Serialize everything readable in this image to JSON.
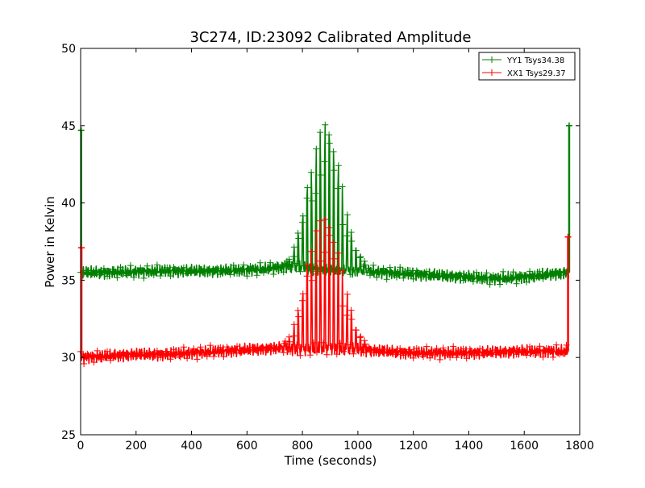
{
  "chart_data": {
    "type": "line",
    "title": "3C274, ID:23092 Calibrated Amplitude",
    "xlabel": "Time (seconds)",
    "ylabel": "Power in Kelvin",
    "xlim": [
      0,
      1800
    ],
    "ylim": [
      25,
      50
    ],
    "x_ticks": [
      0,
      200,
      400,
      600,
      800,
      1000,
      1200,
      1400,
      1600,
      1800
    ],
    "y_ticks": [
      25,
      30,
      35,
      40,
      45,
      50
    ],
    "x_tick_labels": [
      "0",
      "200",
      "400",
      "600",
      "800",
      "1000",
      "1200",
      "1400",
      "1600",
      "1800"
    ],
    "y_tick_labels": [
      "25",
      "30",
      "35",
      "40",
      "45",
      "50"
    ],
    "grid": false,
    "legend_position": "top-right",
    "marker": "+",
    "series": [
      {
        "name": "YY1 Tsys34.38",
        "color": "#008000",
        "baseline": [
          [
            0,
            35.5
          ],
          [
            100,
            35.5
          ],
          [
            300,
            35.6
          ],
          [
            500,
            35.6
          ],
          [
            650,
            35.7
          ],
          [
            750,
            35.9
          ],
          [
            850,
            35.7
          ],
          [
            1000,
            35.6
          ],
          [
            1100,
            35.5
          ],
          [
            1300,
            35.3
          ],
          [
            1500,
            35.1
          ],
          [
            1600,
            35.2
          ],
          [
            1700,
            35.4
          ],
          [
            1760,
            35.5
          ]
        ],
        "peak": [
          [
            720,
            35.8
          ],
          [
            760,
            36.5
          ],
          [
            790,
            38.5
          ],
          [
            820,
            41.5
          ],
          [
            850,
            43.5
          ],
          [
            880,
            45.8
          ],
          [
            910,
            44.5
          ],
          [
            940,
            41.5
          ],
          [
            970,
            38.5
          ],
          [
            1000,
            36.8
          ],
          [
            1040,
            35.9
          ]
        ],
        "edge_points": [
          [
            2,
            44.7
          ],
          [
            1762,
            45.0
          ]
        ]
      },
      {
        "name": "XX1 Tsys29.37",
        "color": "#ff0000",
        "baseline": [
          [
            0,
            30.0
          ],
          [
            100,
            30.1
          ],
          [
            200,
            30.2
          ],
          [
            300,
            30.2
          ],
          [
            400,
            30.3
          ],
          [
            500,
            30.4
          ],
          [
            600,
            30.5
          ],
          [
            700,
            30.6
          ],
          [
            800,
            30.5
          ],
          [
            900,
            30.6
          ],
          [
            1000,
            30.5
          ],
          [
            1100,
            30.4
          ],
          [
            1200,
            30.3
          ],
          [
            1400,
            30.3
          ],
          [
            1600,
            30.4
          ],
          [
            1760,
            30.4
          ]
        ],
        "peak": [
          [
            720,
            30.7
          ],
          [
            760,
            31.5
          ],
          [
            790,
            33.5
          ],
          [
            820,
            36.5
          ],
          [
            850,
            38.2
          ],
          [
            880,
            39.6
          ],
          [
            910,
            38.5
          ],
          [
            940,
            36.0
          ],
          [
            970,
            33.5
          ],
          [
            1000,
            31.6
          ],
          [
            1040,
            30.8
          ]
        ],
        "edge_points": [
          [
            3,
            37.1
          ],
          [
            1758,
            37.8
          ]
        ]
      }
    ]
  }
}
